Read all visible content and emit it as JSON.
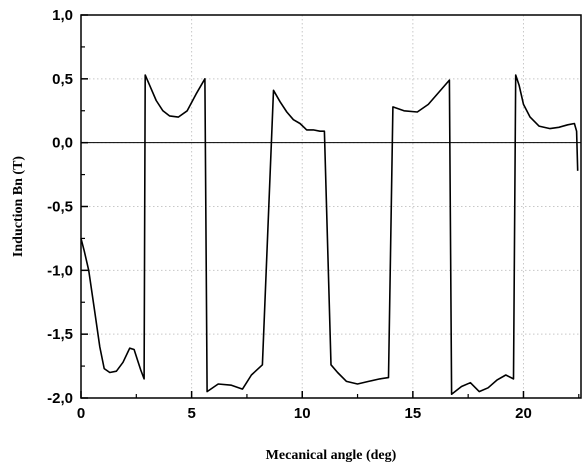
{
  "chart_data": {
    "type": "line",
    "title": "",
    "xlabel": "Mecanical angle (deg)",
    "ylabel": "Induction Bn (T)",
    "xlim": [
      0,
      22.6
    ],
    "ylim": [
      -2.0,
      1.0
    ],
    "x_ticks": [
      0,
      5,
      10,
      15,
      20
    ],
    "x_tick_labels": [
      "0",
      "5",
      "10",
      "15",
      "20"
    ],
    "y_ticks": [
      1.0,
      0.5,
      0.0,
      -0.5,
      -1.0,
      -1.5,
      -2.0
    ],
    "y_tick_labels": [
      "1,0",
      "0,5",
      "0,0",
      "-0,5",
      "-1,0",
      "-1,5",
      "-2,0"
    ],
    "grid": true,
    "zero_line": true,
    "series": [
      {
        "color": "#000000",
        "points": [
          [
            0.0,
            -0.75
          ],
          [
            0.15,
            -0.85
          ],
          [
            0.35,
            -1.0
          ],
          [
            0.6,
            -1.3
          ],
          [
            0.85,
            -1.6
          ],
          [
            1.05,
            -1.77
          ],
          [
            1.3,
            -1.8
          ],
          [
            1.6,
            -1.79
          ],
          [
            1.9,
            -1.72
          ],
          [
            2.2,
            -1.61
          ],
          [
            2.4,
            -1.62
          ],
          [
            2.55,
            -1.7
          ],
          [
            2.7,
            -1.78
          ],
          [
            2.85,
            -1.85
          ],
          [
            2.9,
            0.53
          ],
          [
            3.1,
            0.45
          ],
          [
            3.4,
            0.33
          ],
          [
            3.7,
            0.25
          ],
          [
            4.0,
            0.21
          ],
          [
            4.4,
            0.2
          ],
          [
            4.8,
            0.25
          ],
          [
            5.2,
            0.38
          ],
          [
            5.6,
            0.5
          ],
          [
            5.7,
            -1.95
          ],
          [
            6.2,
            -1.89
          ],
          [
            6.8,
            -1.9
          ],
          [
            7.3,
            -1.93
          ],
          [
            7.7,
            -1.82
          ],
          [
            8.2,
            -1.74
          ],
          [
            8.7,
            0.41
          ],
          [
            9.0,
            0.32
          ],
          [
            9.3,
            0.24
          ],
          [
            9.6,
            0.18
          ],
          [
            9.9,
            0.15
          ],
          [
            10.2,
            0.1
          ],
          [
            10.5,
            0.1
          ],
          [
            10.8,
            0.09
          ],
          [
            11.0,
            0.09
          ],
          [
            11.3,
            -1.74
          ],
          [
            11.6,
            -1.8
          ],
          [
            12.0,
            -1.87
          ],
          [
            12.5,
            -1.89
          ],
          [
            13.0,
            -1.87
          ],
          [
            13.5,
            -1.85
          ],
          [
            13.9,
            -1.84
          ],
          [
            14.1,
            0.28
          ],
          [
            14.6,
            0.25
          ],
          [
            15.2,
            0.24
          ],
          [
            15.7,
            0.3
          ],
          [
            16.2,
            0.4
          ],
          [
            16.65,
            0.49
          ],
          [
            16.75,
            -1.97
          ],
          [
            17.2,
            -1.91
          ],
          [
            17.6,
            -1.88
          ],
          [
            18.0,
            -1.95
          ],
          [
            18.4,
            -1.92
          ],
          [
            18.8,
            -1.86
          ],
          [
            19.2,
            -1.82
          ],
          [
            19.55,
            -1.85
          ],
          [
            19.65,
            0.53
          ],
          [
            19.8,
            0.45
          ],
          [
            20.0,
            0.3
          ],
          [
            20.3,
            0.2
          ],
          [
            20.7,
            0.13
          ],
          [
            21.2,
            0.11
          ],
          [
            21.6,
            0.12
          ],
          [
            22.0,
            0.14
          ],
          [
            22.3,
            0.15
          ],
          [
            22.4,
            0.09
          ],
          [
            22.45,
            -0.22
          ]
        ]
      }
    ]
  }
}
